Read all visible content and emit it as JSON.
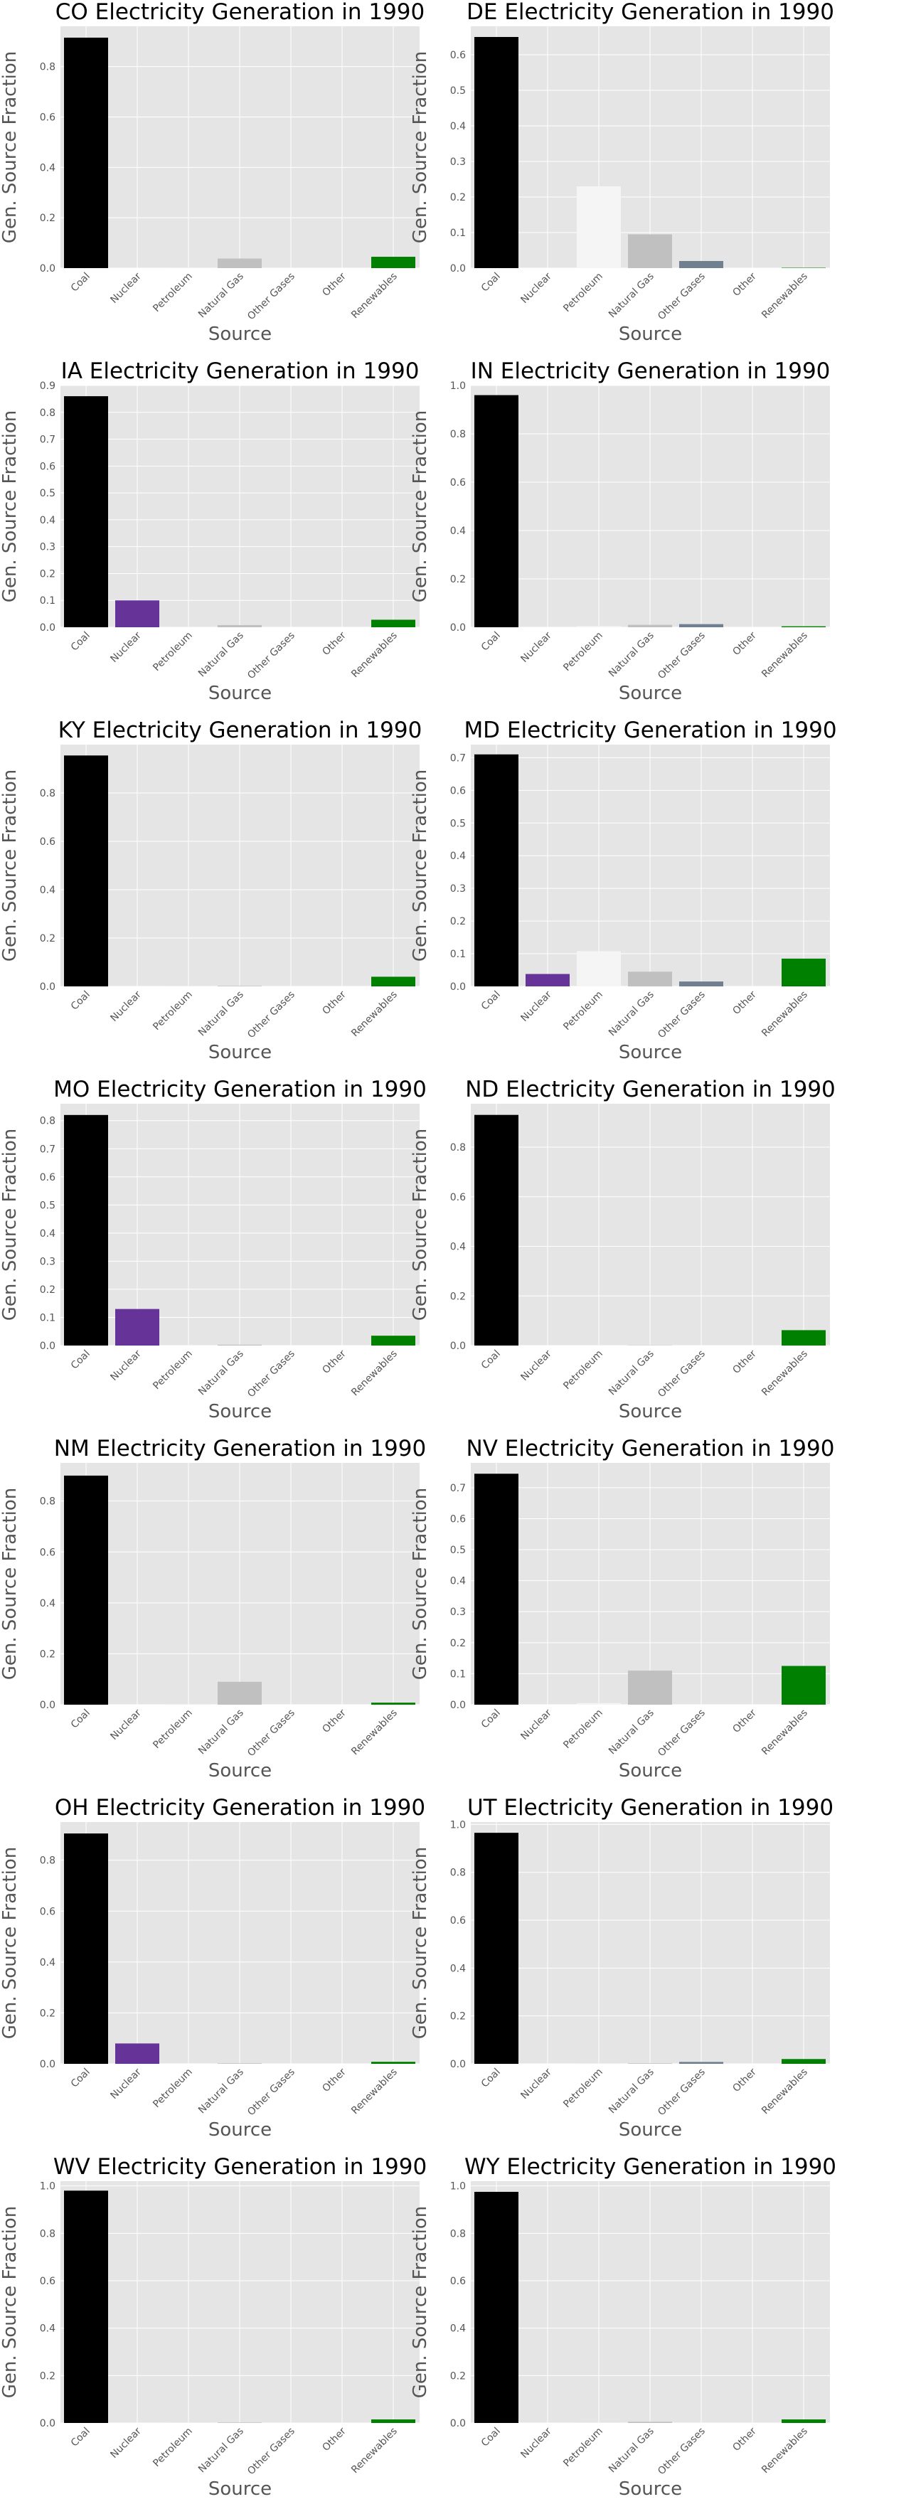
{
  "colors": {
    "background": "#e5e5e5",
    "grid": "#ffffff",
    "Coal": "#000000",
    "Nuclear": "#663399",
    "Petroleum": "#f5f5f5",
    "Natural Gas": "#c0c0c0",
    "Other Gases": "#708090",
    "Other": "#e5e5e5",
    "Renewables": "#008000"
  },
  "chart_data": [
    {
      "type": "bar",
      "title": "CO Electricity Generation in 1990",
      "xlabel": "Source",
      "ylabel": "Gen. Source Fraction",
      "categories": [
        "Coal",
        "Nuclear",
        "Petroleum",
        "Natural Gas",
        "Other Gases",
        "Other",
        "Renewables"
      ],
      "values": [
        0.915,
        0,
        0.002,
        0.038,
        0,
        0,
        0.045
      ],
      "ylim": [
        0,
        0.96
      ],
      "yticks": [
        0.0,
        0.2,
        0.4,
        0.6,
        0.8
      ],
      "ytick_labels": [
        "0.0",
        "0.2",
        "0.4",
        "0.6",
        "0.8"
      ]
    },
    {
      "type": "bar",
      "title": "DE Electricity Generation in 1990",
      "xlabel": "Source",
      "ylabel": "Gen. Source Fraction",
      "categories": [
        "Coal",
        "Nuclear",
        "Petroleum",
        "Natural Gas",
        "Other Gases",
        "Other",
        "Renewables"
      ],
      "values": [
        0.65,
        0,
        0.23,
        0.095,
        0.02,
        0,
        0.001
      ],
      "ylim": [
        0,
        0.68
      ],
      "yticks": [
        0.0,
        0.1,
        0.2,
        0.3,
        0.4,
        0.5,
        0.6
      ],
      "ytick_labels": [
        "0.0",
        "0.1",
        "0.2",
        "0.3",
        "0.4",
        "0.5",
        "0.6"
      ]
    },
    {
      "type": "bar",
      "title": "IA Electricity Generation in 1990",
      "xlabel": "Source",
      "ylabel": "Gen. Source Fraction",
      "categories": [
        "Coal",
        "Nuclear",
        "Petroleum",
        "Natural Gas",
        "Other Gases",
        "Other",
        "Renewables"
      ],
      "values": [
        0.86,
        0.1,
        0.002,
        0.008,
        0,
        0,
        0.028
      ],
      "ylim": [
        0,
        0.9
      ],
      "yticks": [
        0.0,
        0.1,
        0.2,
        0.3,
        0.4,
        0.5,
        0.6,
        0.7,
        0.8,
        0.9
      ],
      "ytick_labels": [
        "0.0",
        "0.1",
        "0.2",
        "0.3",
        "0.4",
        "0.5",
        "0.6",
        "0.7",
        "0.8",
        "0.9"
      ]
    },
    {
      "type": "bar",
      "title": "IN Electricity Generation in 1990",
      "xlabel": "Source",
      "ylabel": "Gen. Source Fraction",
      "categories": [
        "Coal",
        "Nuclear",
        "Petroleum",
        "Natural Gas",
        "Other Gases",
        "Other",
        "Renewables"
      ],
      "values": [
        0.96,
        0,
        0.005,
        0.01,
        0.013,
        0,
        0.004
      ],
      "ylim": [
        0,
        1.0
      ],
      "yticks": [
        0.0,
        0.2,
        0.4,
        0.6,
        0.8,
        1.0
      ],
      "ytick_labels": [
        "0.0",
        "0.2",
        "0.4",
        "0.6",
        "0.8",
        "1.0"
      ]
    },
    {
      "type": "bar",
      "title": "KY Electricity Generation in 1990",
      "xlabel": "Source",
      "ylabel": "Gen. Source Fraction",
      "categories": [
        "Coal",
        "Nuclear",
        "Petroleum",
        "Natural Gas",
        "Other Gases",
        "Other",
        "Renewables"
      ],
      "values": [
        0.955,
        0,
        0.002,
        0.002,
        0,
        0,
        0.04
      ],
      "ylim": [
        0,
        1.0
      ],
      "yticks": [
        0.0,
        0.2,
        0.4,
        0.6,
        0.8
      ],
      "ytick_labels": [
        "0.0",
        "0.2",
        "0.4",
        "0.6",
        "0.8"
      ]
    },
    {
      "type": "bar",
      "title": "MD Electricity Generation in 1990",
      "xlabel": "Source",
      "ylabel": "Gen. Source Fraction",
      "categories": [
        "Coal",
        "Nuclear",
        "Petroleum",
        "Natural Gas",
        "Other Gases",
        "Other",
        "Renewables"
      ],
      "values": [
        0.71,
        0.038,
        0.108,
        0.045,
        0.015,
        0,
        0.085
      ],
      "ylim": [
        0,
        0.74
      ],
      "yticks": [
        0.0,
        0.1,
        0.2,
        0.3,
        0.4,
        0.5,
        0.6,
        0.7
      ],
      "ytick_labels": [
        "0.0",
        "0.1",
        "0.2",
        "0.3",
        "0.4",
        "0.5",
        "0.6",
        "0.7"
      ]
    },
    {
      "type": "bar",
      "title": "MO Electricity Generation in 1990",
      "xlabel": "Source",
      "ylabel": "Gen. Source Fraction",
      "categories": [
        "Coal",
        "Nuclear",
        "Petroleum",
        "Natural Gas",
        "Other Gases",
        "Other",
        "Renewables"
      ],
      "values": [
        0.82,
        0.13,
        0.002,
        0.003,
        0,
        0,
        0.035
      ],
      "ylim": [
        0,
        0.86
      ],
      "yticks": [
        0.0,
        0.1,
        0.2,
        0.3,
        0.4,
        0.5,
        0.6,
        0.7,
        0.8
      ],
      "ytick_labels": [
        "0.0",
        "0.1",
        "0.2",
        "0.3",
        "0.4",
        "0.5",
        "0.6",
        "0.7",
        "0.8"
      ]
    },
    {
      "type": "bar",
      "title": "ND Electricity Generation in 1990",
      "xlabel": "Source",
      "ylabel": "Gen. Source Fraction",
      "categories": [
        "Coal",
        "Nuclear",
        "Petroleum",
        "Natural Gas",
        "Other Gases",
        "Other",
        "Renewables"
      ],
      "values": [
        0.93,
        0,
        0.002,
        0.001,
        0,
        0,
        0.062
      ],
      "ylim": [
        0,
        0.975
      ],
      "yticks": [
        0.0,
        0.2,
        0.4,
        0.6,
        0.8
      ],
      "ytick_labels": [
        "0.0",
        "0.2",
        "0.4",
        "0.6",
        "0.8"
      ]
    },
    {
      "type": "bar",
      "title": "NM Electricity Generation in 1990",
      "xlabel": "Source",
      "ylabel": "Gen. Source Fraction",
      "categories": [
        "Coal",
        "Nuclear",
        "Petroleum",
        "Natural Gas",
        "Other Gases",
        "Other",
        "Renewables"
      ],
      "values": [
        0.9,
        0,
        0.001,
        0.09,
        0,
        0,
        0.008
      ],
      "ylim": [
        0,
        0.95
      ],
      "yticks": [
        0.0,
        0.2,
        0.4,
        0.6,
        0.8
      ],
      "ytick_labels": [
        "0.0",
        "0.2",
        "0.4",
        "0.6",
        "0.8"
      ]
    },
    {
      "type": "bar",
      "title": "NV Electricity Generation in 1990",
      "xlabel": "Source",
      "ylabel": "Gen. Source Fraction",
      "categories": [
        "Coal",
        "Nuclear",
        "Petroleum",
        "Natural Gas",
        "Other Gases",
        "Other",
        "Renewables"
      ],
      "values": [
        0.745,
        0,
        0.005,
        0.11,
        0,
        0,
        0.125
      ],
      "ylim": [
        0,
        0.78
      ],
      "yticks": [
        0.0,
        0.1,
        0.2,
        0.3,
        0.4,
        0.5,
        0.6,
        0.7
      ],
      "ytick_labels": [
        "0.0",
        "0.1",
        "0.2",
        "0.3",
        "0.4",
        "0.5",
        "0.6",
        "0.7"
      ]
    },
    {
      "type": "bar",
      "title": "OH Electricity Generation in 1990",
      "xlabel": "Source",
      "ylabel": "Gen. Source Fraction",
      "categories": [
        "Coal",
        "Nuclear",
        "Petroleum",
        "Natural Gas",
        "Other Gases",
        "Other",
        "Renewables"
      ],
      "values": [
        0.905,
        0.08,
        0.003,
        0.002,
        0,
        0,
        0.008
      ],
      "ylim": [
        0,
        0.95
      ],
      "yticks": [
        0.0,
        0.2,
        0.4,
        0.6,
        0.8
      ],
      "ytick_labels": [
        "0.0",
        "0.2",
        "0.4",
        "0.6",
        "0.8"
      ]
    },
    {
      "type": "bar",
      "title": "UT Electricity Generation in 1990",
      "xlabel": "Source",
      "ylabel": "Gen. Source Fraction",
      "categories": [
        "Coal",
        "Nuclear",
        "Petroleum",
        "Natural Gas",
        "Other Gases",
        "Other",
        "Renewables"
      ],
      "values": [
        0.965,
        0,
        0.001,
        0.002,
        0.008,
        0,
        0.02
      ],
      "ylim": [
        0,
        1.01
      ],
      "yticks": [
        0.0,
        0.2,
        0.4,
        0.6,
        0.8,
        1.0
      ],
      "ytick_labels": [
        "0.0",
        "0.2",
        "0.4",
        "0.6",
        "0.8",
        "1.0"
      ]
    },
    {
      "type": "bar",
      "title": "WV Electricity Generation in 1990",
      "xlabel": "Source",
      "ylabel": "Gen. Source Fraction",
      "categories": [
        "Coal",
        "Nuclear",
        "Petroleum",
        "Natural Gas",
        "Other Gases",
        "Other",
        "Renewables"
      ],
      "values": [
        0.98,
        0,
        0.002,
        0.002,
        0,
        0,
        0.015
      ],
      "ylim": [
        0,
        1.02
      ],
      "yticks": [
        0.0,
        0.2,
        0.4,
        0.6,
        0.8,
        1.0
      ],
      "ytick_labels": [
        "0.0",
        "0.2",
        "0.4",
        "0.6",
        "0.8",
        "1.0"
      ]
    },
    {
      "type": "bar",
      "title": "WY Electricity Generation in 1990",
      "xlabel": "Source",
      "ylabel": "Gen. Source Fraction",
      "categories": [
        "Coal",
        "Nuclear",
        "Petroleum",
        "Natural Gas",
        "Other Gases",
        "Other",
        "Renewables"
      ],
      "values": [
        0.975,
        0,
        0.001,
        0.005,
        0,
        0,
        0.015
      ],
      "ylim": [
        0,
        1.02
      ],
      "yticks": [
        0.0,
        0.2,
        0.4,
        0.6,
        0.8,
        1.0
      ],
      "ytick_labels": [
        "0.0",
        "0.2",
        "0.4",
        "0.6",
        "0.8",
        "1.0"
      ]
    }
  ]
}
